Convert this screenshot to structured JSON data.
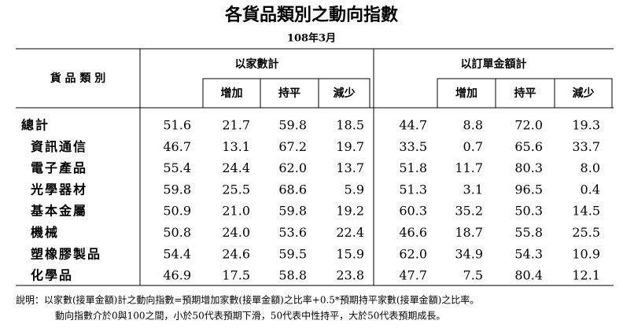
{
  "header": {
    "title": "各貨品類別之動向指數",
    "subtitle": "108年3月"
  },
  "table": {
    "category_header": "貨 品 類 別",
    "groups": [
      {
        "title": "以家數計",
        "columns": [
          "增加",
          "持平",
          "減少"
        ]
      },
      {
        "title": "以訂單金額計",
        "columns": [
          "增加",
          "持平",
          "減少"
        ]
      }
    ],
    "rows": [
      {
        "label": "總計",
        "values": [
          "51.6",
          "21.7",
          "59.8",
          "18.5",
          "44.7",
          "8.8",
          "72.0",
          "19.3"
        ]
      },
      {
        "label": "資訊通信",
        "values": [
          "46.7",
          "13.1",
          "67.2",
          "19.7",
          "33.5",
          "0.7",
          "65.6",
          "33.7"
        ]
      },
      {
        "label": "電子產品",
        "values": [
          "55.4",
          "24.4",
          "62.0",
          "13.7",
          "51.8",
          "11.7",
          "80.3",
          "8.0"
        ]
      },
      {
        "label": "光學器材",
        "values": [
          "59.8",
          "25.5",
          "68.6",
          "5.9",
          "51.3",
          "3.1",
          "96.5",
          "0.4"
        ]
      },
      {
        "label": "基本金屬",
        "values": [
          "50.9",
          "21.0",
          "59.8",
          "19.2",
          "60.3",
          "35.2",
          "50.3",
          "14.5"
        ]
      },
      {
        "label": "機械",
        "values": [
          "50.8",
          "24.0",
          "53.6",
          "22.4",
          "46.6",
          "18.7",
          "55.8",
          "25.5"
        ]
      },
      {
        "label": "塑橡膠製品",
        "values": [
          "54.4",
          "24.6",
          "59.5",
          "15.9",
          "62.0",
          "34.9",
          "54.3",
          "10.9"
        ]
      },
      {
        "label": "化學品",
        "values": [
          "46.9",
          "17.5",
          "58.8",
          "23.8",
          "47.7",
          "7.5",
          "80.4",
          "12.1"
        ]
      }
    ]
  },
  "notes": [
    "說明：以家數(接單金額)計之動向指數=預期增加家數(接單金額)之比率+0.5*預期持平家數(接單金額)之比率。",
    "動向指數介於0與100之間，小於50代表預期下滑，50代表中性持平，大於50代表預期成長。"
  ]
}
